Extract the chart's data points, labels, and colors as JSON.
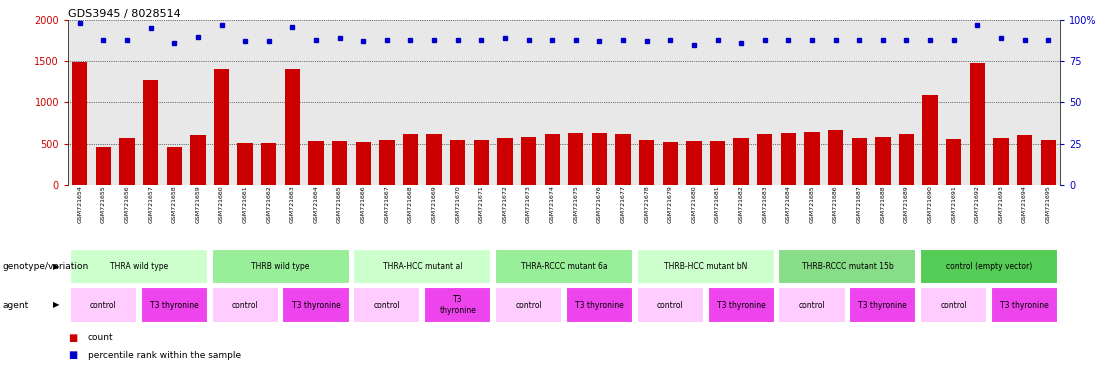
{
  "title": "GDS3945 / 8028514",
  "samples": [
    "GSM721654",
    "GSM721655",
    "GSM721656",
    "GSM721657",
    "GSM721658",
    "GSM721659",
    "GSM721660",
    "GSM721661",
    "GSM721662",
    "GSM721663",
    "GSM721664",
    "GSM721665",
    "GSM721666",
    "GSM721667",
    "GSM721668",
    "GSM721669",
    "GSM721670",
    "GSM721671",
    "GSM721672",
    "GSM721673",
    "GSM721674",
    "GSM721675",
    "GSM721676",
    "GSM721677",
    "GSM721678",
    "GSM721679",
    "GSM721680",
    "GSM721681",
    "GSM721682",
    "GSM721683",
    "GSM721684",
    "GSM721685",
    "GSM721686",
    "GSM721687",
    "GSM721688",
    "GSM721689",
    "GSM721690",
    "GSM721691",
    "GSM721692",
    "GSM721693",
    "GSM721694",
    "GSM721695"
  ],
  "counts": [
    1490,
    455,
    570,
    1270,
    455,
    610,
    1410,
    505,
    505,
    1410,
    530,
    530,
    525,
    545,
    615,
    615,
    540,
    545,
    570,
    580,
    615,
    625,
    625,
    615,
    545,
    520,
    535,
    530,
    570,
    615,
    625,
    640,
    670,
    565,
    580,
    615,
    1090,
    560,
    1480,
    570,
    605,
    540
  ],
  "percentiles": [
    98,
    88,
    88,
    95,
    86,
    90,
    97,
    87,
    87,
    96,
    88,
    89,
    87,
    88,
    88,
    88,
    88,
    88,
    89,
    88,
    88,
    88,
    87,
    88,
    87,
    88,
    85,
    88,
    86,
    88,
    88,
    88,
    88,
    88,
    88,
    88,
    88,
    88,
    97,
    89,
    88,
    88
  ],
  "ylim_left": [
    0,
    2000
  ],
  "ylim_right": [
    0,
    100
  ],
  "yticks_left": [
    0,
    500,
    1000,
    1500,
    2000
  ],
  "yticks_right": [
    0,
    25,
    50,
    75,
    100
  ],
  "bar_color": "#cc0000",
  "dot_color": "#0000cc",
  "genotype_groups": [
    {
      "label": "THRA wild type",
      "start": 0,
      "end": 5,
      "color": "#ccffcc"
    },
    {
      "label": "THRB wild type",
      "start": 6,
      "end": 11,
      "color": "#99ee99"
    },
    {
      "label": "THRA-HCC mutant al",
      "start": 12,
      "end": 17,
      "color": "#ccffcc"
    },
    {
      "label": "THRA-RCCC mutant 6a",
      "start": 18,
      "end": 23,
      "color": "#99ee99"
    },
    {
      "label": "THRB-HCC mutant bN",
      "start": 24,
      "end": 29,
      "color": "#ccffcc"
    },
    {
      "label": "THRB-RCCC mutant 15b",
      "start": 30,
      "end": 35,
      "color": "#88dd88"
    },
    {
      "label": "control (empty vector)",
      "start": 36,
      "end": 41,
      "color": "#55cc55"
    }
  ],
  "agent_groups": [
    {
      "label": "control",
      "start": 0,
      "end": 2,
      "color": "#ffccff"
    },
    {
      "label": "T3 thyronine",
      "start": 3,
      "end": 5,
      "color": "#ee44ee"
    },
    {
      "label": "control",
      "start": 6,
      "end": 8,
      "color": "#ffccff"
    },
    {
      "label": "T3 thyronine",
      "start": 9,
      "end": 11,
      "color": "#ee44ee"
    },
    {
      "label": "control",
      "start": 12,
      "end": 14,
      "color": "#ffccff"
    },
    {
      "label": "T3\nthyronine",
      "start": 15,
      "end": 17,
      "color": "#ee44ee"
    },
    {
      "label": "control",
      "start": 18,
      "end": 20,
      "color": "#ffccff"
    },
    {
      "label": "T3 thyronine",
      "start": 21,
      "end": 23,
      "color": "#ee44ee"
    },
    {
      "label": "control",
      "start": 24,
      "end": 26,
      "color": "#ffccff"
    },
    {
      "label": "T3 thyronine",
      "start": 27,
      "end": 29,
      "color": "#ee44ee"
    },
    {
      "label": "control",
      "start": 30,
      "end": 32,
      "color": "#ffccff"
    },
    {
      "label": "T3 thyronine",
      "start": 33,
      "end": 35,
      "color": "#ee44ee"
    },
    {
      "label": "control",
      "start": 36,
      "end": 38,
      "color": "#ffccff"
    },
    {
      "label": "T3 thyronine",
      "start": 39,
      "end": 41,
      "color": "#ee44ee"
    }
  ],
  "legend_count_color": "#cc0000",
  "legend_dot_color": "#0000cc",
  "bg_color": "#ffffff",
  "plot_bg_color": "#e8e8e8",
  "label_row1": "genotype/variation",
  "label_row2": "agent"
}
